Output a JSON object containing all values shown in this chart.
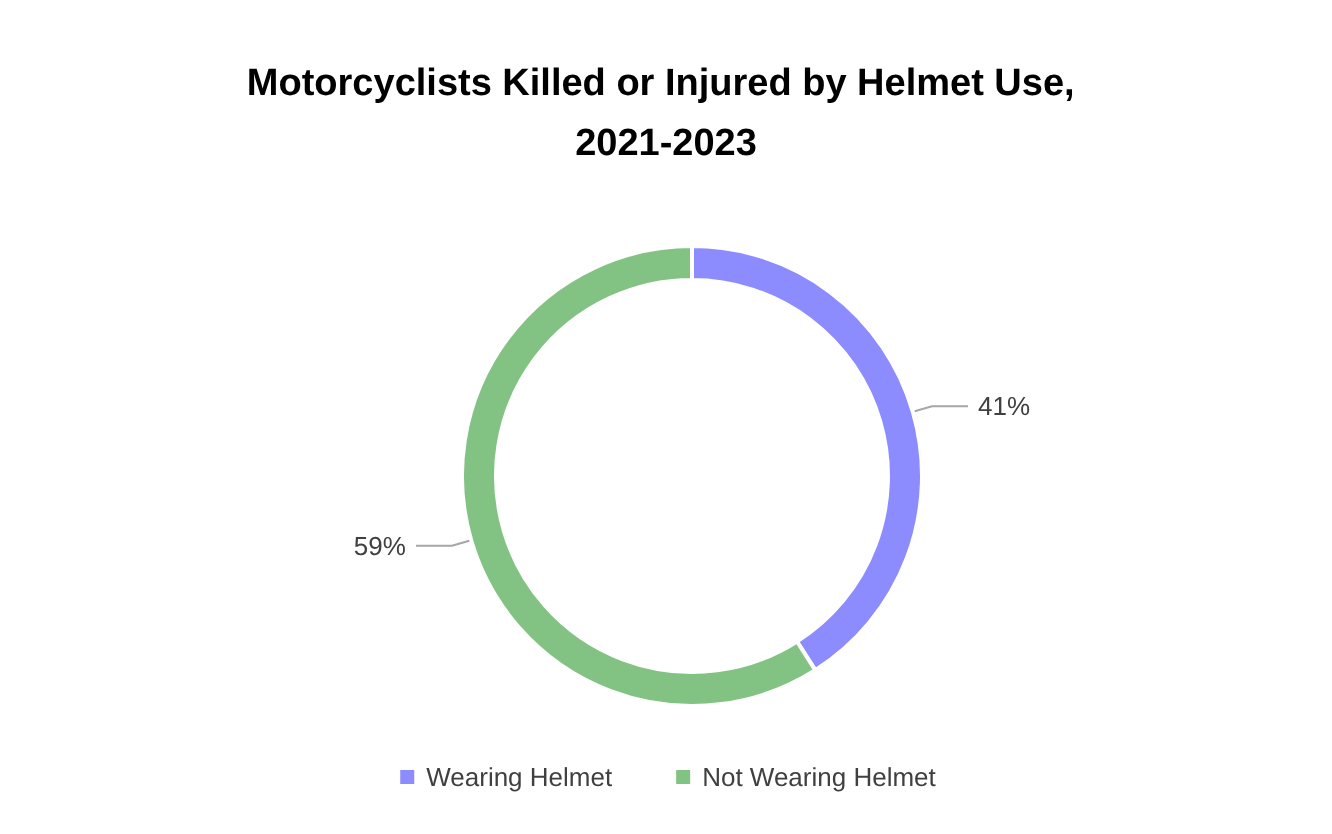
{
  "chart_data": {
    "type": "donut",
    "title": "Motorcyclists Killed or Injured by Helmet Use, 2021-2023",
    "categories": [
      "Wearing Helmet",
      "Not Wearing Helmet"
    ],
    "values": [
      41,
      59
    ],
    "value_labels": [
      "41%",
      "59%"
    ],
    "colors": [
      "#8c8cff",
      "#82c282"
    ],
    "legend": "bottom"
  }
}
